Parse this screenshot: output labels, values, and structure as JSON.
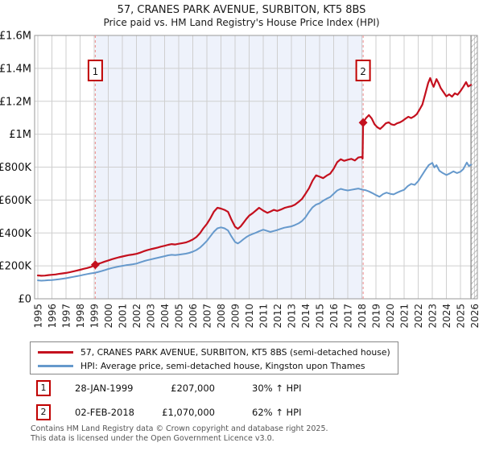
{
  "title": "57, CRANES PARK AVENUE, SURBITON, KT5 8BS",
  "subtitle": "Price paid vs. HM Land Registry's House Price Index (HPI)",
  "legend": [
    {
      "label": "57, CRANES PARK AVENUE, SURBITON, KT5 8BS (semi-detached house)"
    },
    {
      "label": "HPI: Average price, semi-detached house, Kingston upon Thames"
    }
  ],
  "annotations": [
    {
      "num": "1",
      "date": "28-JAN-1999",
      "price": "£207,000",
      "hpi": "30% ↑ HPI"
    },
    {
      "num": "2",
      "date": "02-FEB-2018",
      "price": "£1,070,000",
      "hpi": "62% ↑ HPI"
    }
  ],
  "footer": {
    "line1": "Contains HM Land Registry data © Crown copyright and database right 2025.",
    "line2": "This data is licensed under the Open Government Licence v3.0."
  },
  "chart_data": {
    "type": "line",
    "unit": "GBP_thousands",
    "y_max": 1600,
    "y_ticks": [
      {
        "value": 0,
        "label": "£0"
      },
      {
        "value": 200,
        "label": "£200K"
      },
      {
        "value": 400,
        "label": "£400K"
      },
      {
        "value": 600,
        "label": "£600K"
      },
      {
        "value": 800,
        "label": "£800K"
      },
      {
        "value": 1000,
        "label": "£1M"
      },
      {
        "value": 1200,
        "label": "£1.2M"
      },
      {
        "value": 1400,
        "label": "£1.4M"
      },
      {
        "value": 1600,
        "label": "£1.6M"
      }
    ],
    "x_ticks": [
      1995,
      1996,
      1997,
      1998,
      1999,
      2000,
      2001,
      2002,
      2003,
      2004,
      2005,
      2006,
      2007,
      2008,
      2009,
      2010,
      2011,
      2012,
      2013,
      2014,
      2015,
      2016,
      2017,
      2018,
      2019,
      2020,
      2021,
      2022,
      2023,
      2024,
      2025,
      2026
    ],
    "shade_span": [
      1999.08,
      2018.09
    ],
    "hatch_start": 2025.75,
    "colors": {
      "grid": "#cfcfcf",
      "frame": "#9a9a9a",
      "shade": "#eef2fb",
      "dashed": "#ef9a9a",
      "marker_box": "#c00000",
      "hatch": "#bbbbbb",
      "hatch_edge": "#8a8a8a",
      "axis_text": "#111111"
    },
    "sales": [
      {
        "n": 1,
        "year": 1999.08,
        "value": 207,
        "date": "28-JAN-1999",
        "price_gbp": 207000,
        "vs_hpi": "30% ↑ HPI"
      },
      {
        "n": 2,
        "year": 2018.09,
        "value": 1070,
        "date": "02-FEB-2018",
        "price_gbp": 1070000,
        "vs_hpi": "62% ↑ HPI"
      }
    ],
    "series": [
      {
        "id": "price-paid",
        "name": "57, CRANES PARK AVENUE, SURBITON, KT5 8BS (semi-detached house)",
        "color": "#c4101e",
        "points": [
          [
            1995.0,
            142
          ],
          [
            1995.25,
            140
          ],
          [
            1995.5,
            141
          ],
          [
            1995.75,
            144
          ],
          [
            1996.0,
            146
          ],
          [
            1996.25,
            148
          ],
          [
            1996.5,
            151
          ],
          [
            1996.75,
            154
          ],
          [
            1997.0,
            157
          ],
          [
            1997.25,
            161
          ],
          [
            1997.5,
            166
          ],
          [
            1997.75,
            171
          ],
          [
            1998.0,
            176
          ],
          [
            1998.25,
            182
          ],
          [
            1998.5,
            187
          ],
          [
            1998.75,
            193
          ],
          [
            1999.0,
            201
          ],
          [
            1999.08,
            207
          ],
          [
            1999.25,
            212
          ],
          [
            1999.5,
            218
          ],
          [
            1999.75,
            226
          ],
          [
            2000.0,
            233
          ],
          [
            2000.25,
            240
          ],
          [
            2000.5,
            246
          ],
          [
            2000.75,
            252
          ],
          [
            2001.0,
            257
          ],
          [
            2001.25,
            262
          ],
          [
            2001.5,
            266
          ],
          [
            2001.75,
            269
          ],
          [
            2002.0,
            273
          ],
          [
            2002.25,
            280
          ],
          [
            2002.5,
            288
          ],
          [
            2002.75,
            295
          ],
          [
            2003.0,
            301
          ],
          [
            2003.25,
            306
          ],
          [
            2003.5,
            311
          ],
          [
            2003.75,
            317
          ],
          [
            2004.0,
            322
          ],
          [
            2004.25,
            328
          ],
          [
            2004.5,
            332
          ],
          [
            2004.75,
            330
          ],
          [
            2005.0,
            334
          ],
          [
            2005.25,
            338
          ],
          [
            2005.5,
            342
          ],
          [
            2005.75,
            350
          ],
          [
            2006.0,
            360
          ],
          [
            2006.25,
            375
          ],
          [
            2006.5,
            398
          ],
          [
            2006.75,
            428
          ],
          [
            2007.0,
            455
          ],
          [
            2007.25,
            490
          ],
          [
            2007.5,
            530
          ],
          [
            2007.75,
            553
          ],
          [
            2008.0,
            548
          ],
          [
            2008.25,
            540
          ],
          [
            2008.5,
            528
          ],
          [
            2008.75,
            480
          ],
          [
            2009.0,
            438
          ],
          [
            2009.2,
            425
          ],
          [
            2009.4,
            440
          ],
          [
            2009.6,
            462
          ],
          [
            2009.8,
            485
          ],
          [
            2010.0,
            505
          ],
          [
            2010.25,
            520
          ],
          [
            2010.5,
            538
          ],
          [
            2010.7,
            553
          ],
          [
            2011.0,
            536
          ],
          [
            2011.3,
            522
          ],
          [
            2011.5,
            530
          ],
          [
            2011.75,
            540
          ],
          [
            2012.0,
            534
          ],
          [
            2012.25,
            542
          ],
          [
            2012.5,
            552
          ],
          [
            2012.75,
            558
          ],
          [
            2013.0,
            562
          ],
          [
            2013.25,
            572
          ],
          [
            2013.5,
            588
          ],
          [
            2013.75,
            606
          ],
          [
            2014.0,
            638
          ],
          [
            2014.25,
            672
          ],
          [
            2014.5,
            718
          ],
          [
            2014.75,
            750
          ],
          [
            2015.0,
            742
          ],
          [
            2015.25,
            733
          ],
          [
            2015.5,
            748
          ],
          [
            2015.75,
            760
          ],
          [
            2016.0,
            790
          ],
          [
            2016.25,
            830
          ],
          [
            2016.5,
            848
          ],
          [
            2016.75,
            838
          ],
          [
            2017.0,
            845
          ],
          [
            2017.25,
            850
          ],
          [
            2017.5,
            840
          ],
          [
            2017.75,
            858
          ],
          [
            2018.0,
            862
          ],
          [
            2018.05,
            852
          ],
          [
            2018.09,
            1070
          ],
          [
            2018.3,
            1098
          ],
          [
            2018.5,
            1116
          ],
          [
            2018.7,
            1095
          ],
          [
            2018.9,
            1060
          ],
          [
            2019.1,
            1042
          ],
          [
            2019.3,
            1032
          ],
          [
            2019.5,
            1048
          ],
          [
            2019.7,
            1066
          ],
          [
            2019.9,
            1072
          ],
          [
            2020.1,
            1060
          ],
          [
            2020.3,
            1056
          ],
          [
            2020.5,
            1066
          ],
          [
            2020.7,
            1072
          ],
          [
            2020.9,
            1082
          ],
          [
            2021.1,
            1094
          ],
          [
            2021.3,
            1106
          ],
          [
            2021.5,
            1098
          ],
          [
            2021.7,
            1108
          ],
          [
            2021.9,
            1122
          ],
          [
            2022.1,
            1150
          ],
          [
            2022.3,
            1180
          ],
          [
            2022.5,
            1245
          ],
          [
            2022.7,
            1310
          ],
          [
            2022.85,
            1341
          ],
          [
            2023.0,
            1305
          ],
          [
            2023.1,
            1288
          ],
          [
            2023.3,
            1335
          ],
          [
            2023.45,
            1310
          ],
          [
            2023.6,
            1280
          ],
          [
            2023.8,
            1255
          ],
          [
            2024.0,
            1230
          ],
          [
            2024.2,
            1242
          ],
          [
            2024.4,
            1228
          ],
          [
            2024.6,
            1248
          ],
          [
            2024.8,
            1240
          ],
          [
            2025.0,
            1262
          ],
          [
            2025.2,
            1288
          ],
          [
            2025.4,
            1316
          ],
          [
            2025.55,
            1290
          ],
          [
            2025.75,
            1300
          ]
        ]
      },
      {
        "id": "hpi",
        "name": "HPI: Average price, semi-detached house, Kingston upon Thames",
        "color": "#6699cc",
        "points": [
          [
            1995.0,
            112
          ],
          [
            1995.25,
            110
          ],
          [
            1995.5,
            111
          ],
          [
            1995.75,
            113
          ],
          [
            1996.0,
            114
          ],
          [
            1996.25,
            116
          ],
          [
            1996.5,
            119
          ],
          [
            1996.75,
            122
          ],
          [
            1997.0,
            125
          ],
          [
            1997.25,
            129
          ],
          [
            1997.5,
            133
          ],
          [
            1997.75,
            137
          ],
          [
            1998.0,
            141
          ],
          [
            1998.25,
            146
          ],
          [
            1998.5,
            150
          ],
          [
            1998.75,
            154
          ],
          [
            1999.0,
            157
          ],
          [
            1999.25,
            162
          ],
          [
            1999.5,
            168
          ],
          [
            1999.75,
            174
          ],
          [
            2000.0,
            181
          ],
          [
            2000.25,
            187
          ],
          [
            2000.5,
            192
          ],
          [
            2000.75,
            196
          ],
          [
            2001.0,
            200
          ],
          [
            2001.25,
            204
          ],
          [
            2001.5,
            207
          ],
          [
            2001.75,
            210
          ],
          [
            2002.0,
            214
          ],
          [
            2002.25,
            221
          ],
          [
            2002.5,
            228
          ],
          [
            2002.75,
            234
          ],
          [
            2003.0,
            239
          ],
          [
            2003.25,
            244
          ],
          [
            2003.5,
            249
          ],
          [
            2003.75,
            254
          ],
          [
            2004.0,
            259
          ],
          [
            2004.25,
            264
          ],
          [
            2004.5,
            267
          ],
          [
            2004.75,
            265
          ],
          [
            2005.0,
            268
          ],
          [
            2005.25,
            271
          ],
          [
            2005.5,
            274
          ],
          [
            2005.75,
            279
          ],
          [
            2006.0,
            286
          ],
          [
            2006.25,
            296
          ],
          [
            2006.5,
            310
          ],
          [
            2006.75,
            330
          ],
          [
            2007.0,
            352
          ],
          [
            2007.25,
            380
          ],
          [
            2007.5,
            408
          ],
          [
            2007.75,
            428
          ],
          [
            2008.0,
            434
          ],
          [
            2008.25,
            428
          ],
          [
            2008.5,
            415
          ],
          [
            2008.75,
            378
          ],
          [
            2009.0,
            345
          ],
          [
            2009.2,
            336
          ],
          [
            2009.4,
            348
          ],
          [
            2009.6,
            362
          ],
          [
            2009.8,
            375
          ],
          [
            2010.0,
            385
          ],
          [
            2010.25,
            394
          ],
          [
            2010.5,
            402
          ],
          [
            2010.7,
            410
          ],
          [
            2011.0,
            420
          ],
          [
            2011.3,
            412
          ],
          [
            2011.5,
            406
          ],
          [
            2011.75,
            412
          ],
          [
            2012.0,
            418
          ],
          [
            2012.25,
            425
          ],
          [
            2012.5,
            432
          ],
          [
            2012.75,
            436
          ],
          [
            2013.0,
            440
          ],
          [
            2013.25,
            448
          ],
          [
            2013.5,
            458
          ],
          [
            2013.75,
            472
          ],
          [
            2014.0,
            495
          ],
          [
            2014.25,
            528
          ],
          [
            2014.5,
            556
          ],
          [
            2014.75,
            572
          ],
          [
            2015.0,
            580
          ],
          [
            2015.25,
            596
          ],
          [
            2015.5,
            608
          ],
          [
            2015.75,
            618
          ],
          [
            2016.0,
            638
          ],
          [
            2016.25,
            658
          ],
          [
            2016.5,
            668
          ],
          [
            2016.75,
            662
          ],
          [
            2017.0,
            658
          ],
          [
            2017.25,
            662
          ],
          [
            2017.5,
            666
          ],
          [
            2017.75,
            670
          ],
          [
            2018.0,
            664
          ],
          [
            2018.25,
            660
          ],
          [
            2018.5,
            652
          ],
          [
            2018.75,
            642
          ],
          [
            2019.0,
            630
          ],
          [
            2019.25,
            620
          ],
          [
            2019.5,
            636
          ],
          [
            2019.75,
            645
          ],
          [
            2020.0,
            638
          ],
          [
            2020.25,
            634
          ],
          [
            2020.5,
            645
          ],
          [
            2020.75,
            654
          ],
          [
            2021.0,
            662
          ],
          [
            2021.25,
            684
          ],
          [
            2021.5,
            698
          ],
          [
            2021.75,
            692
          ],
          [
            2022.0,
            715
          ],
          [
            2022.25,
            748
          ],
          [
            2022.5,
            782
          ],
          [
            2022.75,
            812
          ],
          [
            2023.0,
            826
          ],
          [
            2023.15,
            798
          ],
          [
            2023.3,
            812
          ],
          [
            2023.5,
            778
          ],
          [
            2023.75,
            764
          ],
          [
            2024.0,
            752
          ],
          [
            2024.25,
            762
          ],
          [
            2024.5,
            774
          ],
          [
            2024.75,
            764
          ],
          [
            2025.0,
            772
          ],
          [
            2025.2,
            788
          ],
          [
            2025.45,
            828
          ],
          [
            2025.6,
            806
          ],
          [
            2025.75,
            815
          ]
        ]
      }
    ]
  }
}
